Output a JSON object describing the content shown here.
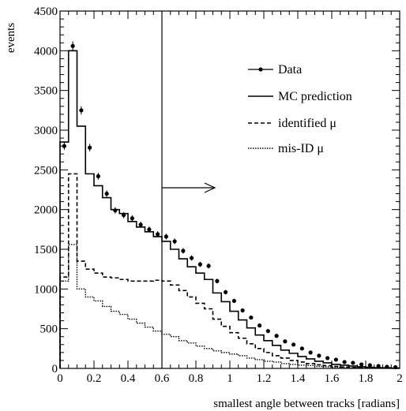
{
  "chart_data": {
    "type": "line",
    "xlabel": "smallest angle between tracks [radians]",
    "ylabel": "events",
    "xlim": [
      0,
      2
    ],
    "ylim": [
      0,
      4500
    ],
    "x_ticks": [
      "0",
      "0.2",
      "0.4",
      "0.6",
      "0.8",
      "1",
      "1.2",
      "1.4",
      "1.6",
      "1.8",
      "2"
    ],
    "y_ticks": [
      "0",
      "500",
      "1000",
      "1500",
      "2000",
      "2500",
      "3000",
      "3500",
      "4000",
      "4500"
    ],
    "bin_edges": [
      0,
      0.05,
      0.1,
      0.15,
      0.2,
      0.25,
      0.3,
      0.35,
      0.4,
      0.45,
      0.5,
      0.55,
      0.6,
      0.65,
      0.7,
      0.75,
      0.8,
      0.85,
      0.9,
      0.95,
      1.0,
      1.05,
      1.1,
      1.15,
      1.2,
      1.25,
      1.3,
      1.35,
      1.4,
      1.45,
      1.5,
      1.55,
      1.6,
      1.65,
      1.7,
      1.75,
      1.8,
      1.85,
      1.9,
      1.95,
      2.0
    ],
    "series": [
      {
        "name": "Data",
        "style": "points",
        "x": [
          0.025,
          0.075,
          0.125,
          0.175,
          0.225,
          0.275,
          0.325,
          0.375,
          0.425,
          0.475,
          0.525,
          0.575,
          0.625,
          0.675,
          0.725,
          0.775,
          0.825,
          0.875,
          0.925,
          0.975,
          1.025,
          1.075,
          1.125,
          1.175,
          1.225,
          1.275,
          1.325,
          1.375,
          1.425,
          1.475,
          1.525,
          1.575,
          1.625,
          1.675,
          1.725,
          1.775,
          1.825,
          1.875,
          1.925,
          1.975
        ],
        "values": [
          2800,
          4060,
          3250,
          2780,
          2420,
          2200,
          1990,
          1930,
          1890,
          1810,
          1750,
          1690,
          1660,
          1600,
          1480,
          1390,
          1310,
          1290,
          1100,
          960,
          850,
          730,
          640,
          540,
          470,
          410,
          340,
          300,
          250,
          200,
          160,
          130,
          110,
          80,
          70,
          50,
          40,
          30,
          20,
          15
        ]
      },
      {
        "name": "MC prediction",
        "style": "solid-step",
        "values": [
          2850,
          4000,
          3050,
          2450,
          2300,
          2150,
          2000,
          1950,
          1850,
          1780,
          1720,
          1660,
          1600,
          1500,
          1380,
          1280,
          1200,
          1120,
          950,
          840,
          720,
          610,
          510,
          420,
          350,
          290,
          230,
          190,
          150,
          120,
          90,
          70,
          50,
          40,
          30,
          20,
          15,
          10,
          8,
          5
        ]
      },
      {
        "name": "identified μ",
        "style": "dashed-step",
        "values": [
          1150,
          2450,
          1350,
          1250,
          1200,
          1150,
          1140,
          1120,
          1100,
          1100,
          1100,
          1110,
          1100,
          1050,
          980,
          900,
          820,
          750,
          620,
          530,
          450,
          380,
          310,
          250,
          200,
          160,
          130,
          100,
          80,
          60,
          45,
          35,
          25,
          18,
          12,
          8,
          6,
          4,
          3,
          2
        ]
      },
      {
        "name": "mis-ID μ",
        "style": "dotted-step",
        "values": [
          1100,
          1560,
          1000,
          900,
          850,
          780,
          720,
          680,
          620,
          570,
          520,
          470,
          430,
          400,
          350,
          320,
          280,
          250,
          220,
          200,
          180,
          160,
          130,
          110,
          90,
          80,
          60,
          50,
          40,
          35,
          25,
          20,
          15,
          10,
          8,
          5,
          4,
          3,
          2,
          1
        ]
      }
    ],
    "cut_line_x": 0.6,
    "legend_placement": "top-right"
  }
}
